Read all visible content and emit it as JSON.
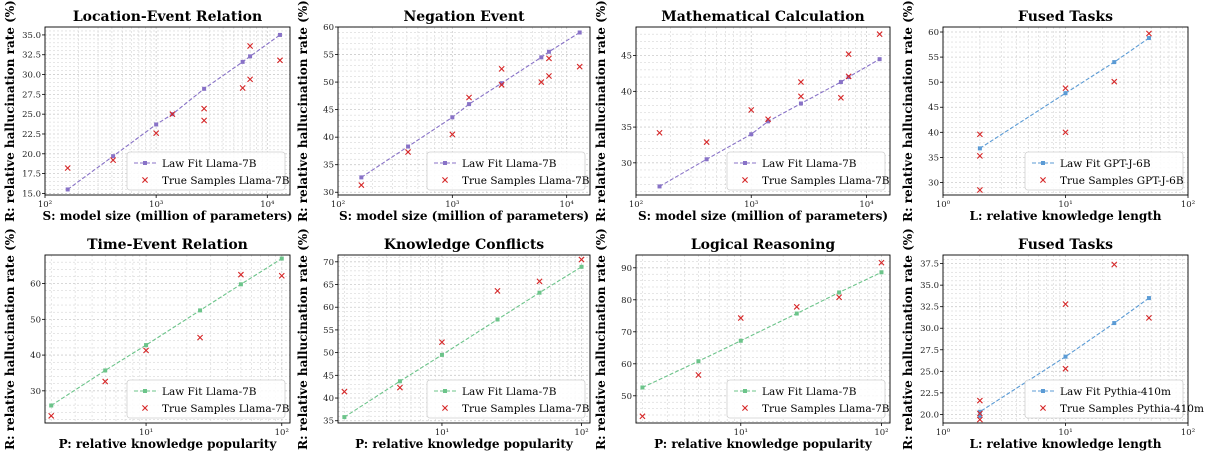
{
  "figure": {
    "colors": {
      "purple": "#8872c7",
      "blue": "#5b9bd5",
      "green": "#6cc48a",
      "red": "#d62728",
      "grid": "#cccccc"
    }
  },
  "chart_data": [
    {
      "type": "scatter",
      "title": "Location-Event Relation",
      "xlabel": "S: model size (million of parameters)",
      "ylabel": "R: relative hallucination rate (%)",
      "xscale": "log",
      "xlim": [
        100,
        16000
      ],
      "ylim": [
        14.8,
        36
      ],
      "xticks": [
        100,
        1000,
        10000
      ],
      "xticklabels": [
        "10²",
        "10³",
        "10⁴"
      ],
      "yticks": [
        15,
        17.5,
        20,
        22.5,
        25,
        27.5,
        30,
        32.5,
        35
      ],
      "yticklabels": [
        "15.0",
        "17.5",
        "20.0",
        "22.5",
        "25.0",
        "27.5",
        "30.0",
        "32.5",
        "35.0"
      ],
      "fit_color": "purple",
      "grid": true,
      "legend_position": "lower-right",
      "series": [
        {
          "name": "Law Fit Llama-7B",
          "kind": "line",
          "x": [
            160,
            410,
            1000,
            1400,
            2700,
            6000,
            7000,
            13000
          ],
          "y": [
            15.5,
            19.7,
            23.7,
            25.0,
            28.2,
            31.6,
            32.3,
            35.0
          ]
        },
        {
          "name": "True Samples Llama-7B",
          "kind": "marker",
          "x": [
            160,
            410,
            1000,
            1400,
            2700,
            2700,
            6000,
            7000,
            7000,
            13000
          ],
          "y": [
            18.2,
            19.2,
            22.6,
            25.0,
            25.7,
            24.2,
            28.3,
            33.6,
            29.4,
            31.8
          ]
        }
      ]
    },
    {
      "type": "scatter",
      "title": "Negation Event",
      "xlabel": "S: model size (million of parameters)",
      "ylabel": "R: relative hallucination rate (%)",
      "xscale": "log",
      "xlim": [
        100,
        16000
      ],
      "ylim": [
        29.5,
        60
      ],
      "xticks": [
        100,
        1000,
        10000
      ],
      "xticklabels": [
        "10²",
        "10³",
        "10⁴"
      ],
      "yticks": [
        30,
        35,
        40,
        45,
        50,
        55,
        60
      ],
      "yticklabels": [
        "30",
        "35",
        "40",
        "45",
        "50",
        "55",
        "60"
      ],
      "fit_color": "purple",
      "grid": true,
      "legend_position": "lower-right",
      "series": [
        {
          "name": "Law Fit Llama-7B",
          "kind": "line",
          "x": [
            160,
            410,
            1000,
            1400,
            2700,
            6000,
            7000,
            13000
          ],
          "y": [
            32.7,
            38.3,
            43.6,
            46.0,
            49.8,
            54.5,
            55.5,
            59.0
          ]
        },
        {
          "name": "True Samples Llama-7B",
          "kind": "marker",
          "x": [
            160,
            410,
            1000,
            1400,
            2700,
            2700,
            6000,
            7000,
            7000,
            13000
          ],
          "y": [
            31.3,
            37.3,
            40.5,
            47.2,
            52.4,
            49.5,
            50.0,
            54.3,
            51.1,
            52.8
          ]
        }
      ]
    },
    {
      "type": "scatter",
      "title": "Mathematical Calculation",
      "xlabel": "S: model size (million of parameters)",
      "ylabel": "R: relative hallucination rate (%)",
      "xscale": "log",
      "xlim": [
        100,
        16000
      ],
      "ylim": [
        25.5,
        49
      ],
      "xticks": [
        100,
        1000,
        10000
      ],
      "xticklabels": [
        "10²",
        "10³",
        "10⁴"
      ],
      "yticks": [
        30,
        35,
        40,
        45
      ],
      "yticklabels": [
        "30",
        "35",
        "40",
        "45"
      ],
      "fit_color": "purple",
      "grid": true,
      "legend_position": "lower-right",
      "series": [
        {
          "name": "Law Fit Llama-7B",
          "kind": "line",
          "x": [
            160,
            410,
            1000,
            1400,
            2700,
            6000,
            7000,
            13000
          ],
          "y": [
            26.7,
            30.5,
            34.0,
            35.8,
            38.3,
            41.3,
            42.0,
            44.5
          ]
        },
        {
          "name": "True Samples Llama-7B",
          "kind": "marker",
          "x": [
            160,
            410,
            1000,
            1400,
            2700,
            2700,
            6000,
            7000,
            7000,
            13000
          ],
          "y": [
            34.2,
            32.9,
            37.4,
            36.1,
            41.3,
            39.3,
            39.1,
            45.2,
            42.1,
            48.0
          ]
        }
      ]
    },
    {
      "type": "scatter",
      "title": "Fused Tasks",
      "xlabel": "L: relative knowledge length",
      "ylabel": "R: relative hallucination rate (%)",
      "xscale": "log",
      "xlim": [
        1,
        100
      ],
      "ylim": [
        27.5,
        61
      ],
      "xticks": [
        1,
        10,
        100
      ],
      "xticklabels": [
        "10⁰",
        "10¹",
        "10²"
      ],
      "yticks": [
        30,
        35,
        40,
        45,
        50,
        55,
        60
      ],
      "yticklabels": [
        "30",
        "35",
        "40",
        "45",
        "50",
        "55",
        "60"
      ],
      "fit_color": "blue",
      "grid": true,
      "legend_position": "lower-right",
      "series": [
        {
          "name": "Law Fit GPT-J-6B",
          "kind": "line",
          "x": [
            2,
            10,
            25,
            48
          ],
          "y": [
            36.8,
            47.8,
            54.0,
            58.8
          ]
        },
        {
          "name": "True Samples GPT-J-6B",
          "kind": "marker",
          "x": [
            2,
            2,
            2,
            10,
            10,
            25,
            48
          ],
          "y": [
            39.6,
            35.3,
            28.5,
            48.8,
            40.0,
            50.1,
            59.7
          ]
        }
      ]
    },
    {
      "type": "scatter",
      "title": "Time-Event Relation",
      "xlabel": "P: relative knowledge popularity",
      "ylabel": "R: relative hallucination rate (%)",
      "xscale": "log",
      "xlim": [
        1.8,
        115
      ],
      "ylim": [
        21,
        68
      ],
      "xticks": [
        10,
        100
      ],
      "xticklabels": [
        "10¹",
        "10²"
      ],
      "yticks": [
        30,
        40,
        50,
        60
      ],
      "yticklabels": [
        "30",
        "40",
        "50",
        "60"
      ],
      "fit_color": "green",
      "grid": true,
      "legend_position": "lower-right",
      "series": [
        {
          "name": "Law Fit Llama-7B",
          "kind": "line",
          "x": [
            2,
            5,
            10,
            25,
            50,
            100
          ],
          "y": [
            25.9,
            35.7,
            42.8,
            52.5,
            59.8,
            67.0
          ]
        },
        {
          "name": "True Samples Llama-7B",
          "kind": "marker",
          "x": [
            2,
            5,
            10,
            25,
            50,
            100
          ],
          "y": [
            23.0,
            32.6,
            41.3,
            44.9,
            62.5,
            62.2
          ]
        }
      ]
    },
    {
      "type": "scatter",
      "title": "Knowledge Conflicts",
      "xlabel": "P: relative knowledge popularity",
      "ylabel": "R: relative hallucination rate (%)",
      "xscale": "log",
      "xlim": [
        1.8,
        115
      ],
      "ylim": [
        34.5,
        71.5
      ],
      "xticks": [
        10,
        100
      ],
      "xticklabels": [
        "10¹",
        "10²"
      ],
      "yticks": [
        35,
        40,
        45,
        50,
        55,
        60,
        65,
        70
      ],
      "yticklabels": [
        "35",
        "40",
        "45",
        "50",
        "55",
        "60",
        "65",
        "70"
      ],
      "fit_color": "green",
      "grid": true,
      "legend_position": "lower-right",
      "series": [
        {
          "name": "Law Fit Llama-7B",
          "kind": "line",
          "x": [
            2,
            5,
            10,
            25,
            50,
            100
          ],
          "y": [
            35.8,
            43.7,
            49.5,
            57.3,
            63.2,
            68.9
          ]
        },
        {
          "name": "True Samples Llama-7B",
          "kind": "marker",
          "x": [
            2,
            5,
            10,
            25,
            50,
            100
          ],
          "y": [
            41.4,
            42.3,
            52.3,
            63.6,
            65.7,
            70.5
          ]
        }
      ]
    },
    {
      "type": "scatter",
      "title": "Logical Reasoning",
      "xlabel": "P: relative knowledge popularity",
      "ylabel": "R: relative hallucination rate (%)",
      "xscale": "log",
      "xlim": [
        1.8,
        115
      ],
      "ylim": [
        41.5,
        94
      ],
      "xticks": [
        10,
        100
      ],
      "xticklabels": [
        "10¹",
        "10²"
      ],
      "yticks": [
        50,
        60,
        70,
        80,
        90
      ],
      "yticklabels": [
        "50",
        "60",
        "70",
        "80",
        "90"
      ],
      "fit_color": "green",
      "grid": true,
      "legend_position": "lower-right",
      "series": [
        {
          "name": "Law Fit Llama-7B",
          "kind": "line",
          "x": [
            2,
            5,
            10,
            25,
            50,
            100
          ],
          "y": [
            52.6,
            60.8,
            67.2,
            75.7,
            82.3,
            88.6
          ]
        },
        {
          "name": "True Samples Llama-7B",
          "kind": "marker",
          "x": [
            2,
            5,
            10,
            25,
            50,
            100
          ],
          "y": [
            43.6,
            56.5,
            74.3,
            77.8,
            80.8,
            91.6
          ]
        }
      ]
    },
    {
      "type": "scatter",
      "title": "Fused Tasks",
      "xlabel": "L: relative knowledge length",
      "ylabel": "R: relative hallucination rate (%)",
      "xscale": "log",
      "xlim": [
        1,
        100
      ],
      "ylim": [
        19,
        38.5
      ],
      "xticks": [
        1,
        10,
        100
      ],
      "xticklabels": [
        "10⁰",
        "10¹",
        "10²"
      ],
      "yticks": [
        20,
        22.5,
        25,
        27.5,
        30,
        32.5,
        35,
        37.5
      ],
      "yticklabels": [
        "20.0",
        "22.5",
        "25.0",
        "27.5",
        "30.0",
        "32.5",
        "35.0",
        "37.5"
      ],
      "fit_color": "blue",
      "grid": true,
      "legend_position": "lower-right",
      "series": [
        {
          "name": "Law Fit Pythia-410m",
          "kind": "line",
          "x": [
            2,
            2,
            10,
            25,
            48
          ],
          "y": [
            19.8,
            20.3,
            26.7,
            30.6,
            33.5
          ]
        },
        {
          "name": "True Samples Pythia-410m",
          "kind": "marker",
          "x": [
            2,
            2,
            2,
            10,
            10,
            25,
            48
          ],
          "y": [
            21.6,
            20.1,
            19.4,
            32.8,
            25.3,
            37.4,
            31.2
          ]
        }
      ]
    }
  ]
}
